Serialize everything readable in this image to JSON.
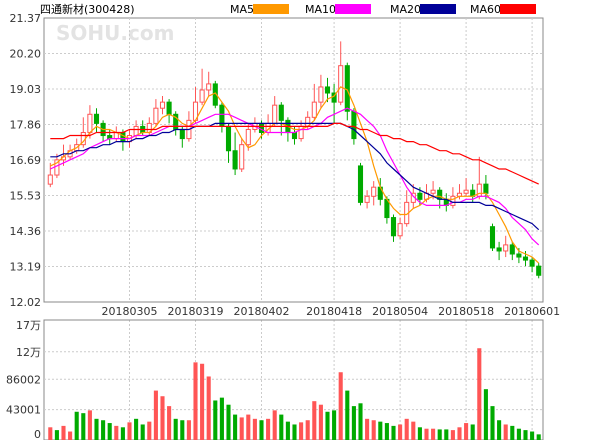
{
  "title": "四通新材(300428)",
  "watermark": "SOHU.com",
  "legend": [
    {
      "name": "MA5",
      "color": "#ff9900"
    },
    {
      "name": "MA10",
      "color": "#ff00ff"
    },
    {
      "name": "MA20",
      "color": "#000099"
    },
    {
      "name": "MA60",
      "color": "#ff0000"
    }
  ],
  "colors": {
    "up": "#ff5555",
    "down": "#00aa00",
    "grid": "#cccccc",
    "frame": "#888888",
    "text": "#333333"
  },
  "chart_data": [
    {
      "type": "candlestick",
      "ylim": [
        12.02,
        21.37
      ],
      "yticks": [
        "21.37",
        "20.20",
        "19.03",
        "17.86",
        "16.69",
        "15.53",
        "14.36",
        "13.19",
        "12.02"
      ],
      "xticks": [
        {
          "label": "20180305",
          "index": 12
        },
        {
          "label": "20180319",
          "index": 22
        },
        {
          "label": "20180402",
          "index": 32
        },
        {
          "label": "20180418",
          "index": 43
        },
        {
          "label": "20180504",
          "index": 53
        },
        {
          "label": "20180518",
          "index": 63
        },
        {
          "label": "20180601",
          "index": 73
        }
      ],
      "candles": [
        [
          15.9,
          16.2,
          16.6,
          15.8
        ],
        [
          16.2,
          16.7,
          16.9,
          16.1
        ],
        [
          16.7,
          16.8,
          17.2,
          16.5
        ],
        [
          16.8,
          17.0,
          17.2,
          16.7
        ],
        [
          17.0,
          17.2,
          17.4,
          16.9
        ],
        [
          17.2,
          17.6,
          18.1,
          17.1
        ],
        [
          17.6,
          18.2,
          18.5,
          17.4
        ],
        [
          18.2,
          17.9,
          18.4,
          17.6
        ],
        [
          17.9,
          17.5,
          18.0,
          17.3
        ],
        [
          17.5,
          17.4,
          17.7,
          17.2
        ],
        [
          17.4,
          17.6,
          17.8,
          17.3
        ],
        [
          17.6,
          17.3,
          17.7,
          17.0
        ],
        [
          17.3,
          17.5,
          17.7,
          17.1
        ],
        [
          17.5,
          17.8,
          18.0,
          17.4
        ],
        [
          17.8,
          17.6,
          18.0,
          17.5
        ],
        [
          17.6,
          17.9,
          18.1,
          17.5
        ],
        [
          17.9,
          18.4,
          18.7,
          17.8
        ],
        [
          18.4,
          18.6,
          18.8,
          18.2
        ],
        [
          18.6,
          18.2,
          18.7,
          17.9
        ],
        [
          18.2,
          17.7,
          18.3,
          17.5
        ],
        [
          17.7,
          17.4,
          17.8,
          17.1
        ],
        [
          17.4,
          18.0,
          18.3,
          17.3
        ],
        [
          18.0,
          18.6,
          19.1,
          17.9
        ],
        [
          18.6,
          19.0,
          19.7,
          18.5
        ],
        [
          19.0,
          19.2,
          19.6,
          18.8
        ],
        [
          19.2,
          18.5,
          19.3,
          18.4
        ],
        [
          18.5,
          17.8,
          18.6,
          17.6
        ],
        [
          17.8,
          17.0,
          17.9,
          16.6
        ],
        [
          17.0,
          16.4,
          17.6,
          16.2
        ],
        [
          16.4,
          17.2,
          17.4,
          16.3
        ],
        [
          17.2,
          17.7,
          17.9,
          17.0
        ],
        [
          17.7,
          17.9,
          18.1,
          17.6
        ],
        [
          17.9,
          17.6,
          18.0,
          17.4
        ],
        [
          17.6,
          17.9,
          18.2,
          17.5
        ],
        [
          17.9,
          18.5,
          18.8,
          17.8
        ],
        [
          18.5,
          18.0,
          18.6,
          17.5
        ],
        [
          18.0,
          17.6,
          18.1,
          17.3
        ],
        [
          17.6,
          17.4,
          17.8,
          17.2
        ],
        [
          17.4,
          17.8,
          18.0,
          17.3
        ],
        [
          17.8,
          18.1,
          18.3,
          17.7
        ],
        [
          18.1,
          18.6,
          19.2,
          18.0
        ],
        [
          18.6,
          19.1,
          19.5,
          18.4
        ],
        [
          19.1,
          18.9,
          19.4,
          18.6
        ],
        [
          18.9,
          18.6,
          19.2,
          17.9
        ],
        [
          18.6,
          19.8,
          20.6,
          18.5
        ],
        [
          19.8,
          18.3,
          19.9,
          18.0
        ],
        [
          18.3,
          17.4,
          18.4,
          17.2
        ],
        [
          16.5,
          15.3,
          16.6,
          15.2
        ],
        [
          15.3,
          15.5,
          15.7,
          15.1
        ],
        [
          15.5,
          15.8,
          16.0,
          15.2
        ],
        [
          15.8,
          15.4,
          16.1,
          15.2
        ],
        [
          15.4,
          14.8,
          15.5,
          14.6
        ],
        [
          14.8,
          14.2,
          14.9,
          14.0
        ],
        [
          14.2,
          14.6,
          14.8,
          14.1
        ],
        [
          14.6,
          15.3,
          15.7,
          14.5
        ],
        [
          15.3,
          15.6,
          15.9,
          15.1
        ],
        [
          15.6,
          15.4,
          15.8,
          15.2
        ],
        [
          15.4,
          15.6,
          15.9,
          15.3
        ],
        [
          15.6,
          15.7,
          16.0,
          15.4
        ],
        [
          15.7,
          15.4,
          15.8,
          15.1
        ],
        [
          15.4,
          15.2,
          15.6,
          15.0
        ],
        [
          15.2,
          15.5,
          15.8,
          15.1
        ],
        [
          15.5,
          15.6,
          15.9,
          15.4
        ],
        [
          15.6,
          15.7,
          16.1,
          15.5
        ],
        [
          15.7,
          15.5,
          15.9,
          15.3
        ],
        [
          15.5,
          15.9,
          16.8,
          15.4
        ],
        [
          15.9,
          15.6,
          16.2,
          15.4
        ],
        [
          14.5,
          13.8,
          14.6,
          13.7
        ],
        [
          13.8,
          13.7,
          14.0,
          13.4
        ],
        [
          13.7,
          13.9,
          14.2,
          13.5
        ],
        [
          13.9,
          13.6,
          14.0,
          13.4
        ],
        [
          13.6,
          13.5,
          13.8,
          13.3
        ],
        [
          13.5,
          13.4,
          13.7,
          13.2
        ],
        [
          13.4,
          13.2,
          13.5,
          13.0
        ],
        [
          13.2,
          12.9,
          13.3,
          12.8
        ]
      ],
      "ma": {
        "MA5": [
          16.5,
          16.6,
          16.8,
          17.0,
          17.1,
          17.3,
          17.6,
          17.8,
          17.7,
          17.7,
          17.6,
          17.5,
          17.4,
          17.5,
          17.6,
          17.6,
          17.8,
          18.1,
          18.2,
          18.1,
          17.9,
          17.8,
          18.0,
          18.4,
          18.8,
          18.9,
          18.6,
          18.3,
          17.8,
          17.4,
          17.1,
          17.2,
          17.5,
          17.7,
          17.9,
          17.9,
          17.8,
          17.7,
          17.7,
          17.8,
          18.0,
          18.4,
          18.7,
          18.8,
          19.1,
          19.0,
          18.5,
          17.9,
          17.3,
          16.5,
          15.8,
          15.4,
          15.1,
          14.9,
          14.9,
          15.1,
          15.2,
          15.4,
          15.5,
          15.5,
          15.4,
          15.4,
          15.5,
          15.5,
          15.5,
          15.6,
          15.6,
          15.3,
          14.9,
          14.5,
          14.0,
          13.7,
          13.6,
          13.5,
          13.3
        ],
        "MA10": [
          16.4,
          16.5,
          16.6,
          16.7,
          16.8,
          16.9,
          17.1,
          17.2,
          17.3,
          17.4,
          17.4,
          17.4,
          17.4,
          17.5,
          17.5,
          17.5,
          17.6,
          17.7,
          17.8,
          17.8,
          17.8,
          17.8,
          17.9,
          18.0,
          18.1,
          18.2,
          18.2,
          18.2,
          18.1,
          18.0,
          17.9,
          17.8,
          17.7,
          17.6,
          17.6,
          17.6,
          17.6,
          17.6,
          17.7,
          17.7,
          17.8,
          17.9,
          18.1,
          18.2,
          18.3,
          18.4,
          18.3,
          18.2,
          18.0,
          17.8,
          17.5,
          17.0,
          16.6,
          16.2,
          15.8,
          15.5,
          15.3,
          15.2,
          15.2,
          15.2,
          15.2,
          15.3,
          15.3,
          15.4,
          15.4,
          15.5,
          15.5,
          15.4,
          15.3,
          15.1,
          14.8,
          14.6,
          14.4,
          14.1,
          13.9
        ],
        "MA20": [
          16.8,
          16.8,
          16.9,
          16.9,
          17.0,
          17.0,
          17.1,
          17.1,
          17.2,
          17.2,
          17.3,
          17.3,
          17.3,
          17.4,
          17.4,
          17.5,
          17.5,
          17.6,
          17.6,
          17.7,
          17.7,
          17.7,
          17.8,
          17.8,
          17.8,
          17.9,
          17.9,
          17.9,
          17.9,
          17.9,
          17.9,
          17.9,
          17.9,
          17.9,
          17.9,
          17.9,
          17.9,
          17.9,
          17.9,
          17.9,
          17.9,
          17.9,
          17.9,
          17.9,
          17.9,
          17.8,
          17.7,
          17.5,
          17.3,
          17.1,
          16.9,
          16.6,
          16.4,
          16.2,
          16.0,
          15.8,
          15.7,
          15.6,
          15.5,
          15.4,
          15.4,
          15.3,
          15.3,
          15.3,
          15.3,
          15.3,
          15.2,
          15.2,
          15.1,
          15.0,
          14.9,
          14.8,
          14.7,
          14.6,
          14.4
        ],
        "MA60": [
          17.4,
          17.4,
          17.4,
          17.5,
          17.5,
          17.5,
          17.5,
          17.6,
          17.6,
          17.6,
          17.6,
          17.6,
          17.7,
          17.7,
          17.7,
          17.7,
          17.7,
          17.8,
          17.8,
          17.8,
          17.8,
          17.8,
          17.8,
          17.8,
          17.8,
          17.8,
          17.8,
          17.8,
          17.8,
          17.8,
          17.8,
          17.8,
          17.8,
          17.8,
          17.8,
          17.8,
          17.8,
          17.8,
          17.8,
          17.8,
          17.8,
          17.8,
          17.8,
          17.9,
          17.9,
          17.8,
          17.8,
          17.7,
          17.7,
          17.6,
          17.5,
          17.5,
          17.4,
          17.4,
          17.3,
          17.3,
          17.2,
          17.2,
          17.1,
          17.0,
          17.0,
          16.9,
          16.9,
          16.8,
          16.7,
          16.7,
          16.6,
          16.5,
          16.4,
          16.4,
          16.3,
          16.2,
          16.1,
          16.0,
          15.9
        ]
      }
    },
    {
      "type": "bar",
      "ylim": [
        0,
        170000
      ],
      "yticks": [
        {
          "label": "17万",
          "value": 170000
        },
        {
          "label": "12万",
          "value": 125000
        },
        {
          "label": "86002",
          "value": 86002
        },
        {
          "label": "43001",
          "value": 43001
        },
        {
          "label": "0",
          "value": 0
        }
      ],
      "values": [
        [
          18000,
          1
        ],
        [
          14000,
          0
        ],
        [
          20000,
          1
        ],
        [
          12000,
          1
        ],
        [
          40000,
          0
        ],
        [
          38000,
          0
        ],
        [
          42000,
          1
        ],
        [
          30000,
          0
        ],
        [
          28000,
          0
        ],
        [
          24000,
          0
        ],
        [
          20000,
          1
        ],
        [
          18000,
          0
        ],
        [
          25000,
          1
        ],
        [
          30000,
          0
        ],
        [
          22000,
          0
        ],
        [
          26000,
          1
        ],
        [
          70000,
          1
        ],
        [
          62000,
          1
        ],
        [
          48000,
          1
        ],
        [
          30000,
          0
        ],
        [
          28000,
          0
        ],
        [
          28000,
          1
        ],
        [
          110000,
          1
        ],
        [
          108000,
          1
        ],
        [
          90000,
          1
        ],
        [
          56000,
          0
        ],
        [
          60000,
          0
        ],
        [
          50000,
          0
        ],
        [
          36000,
          0
        ],
        [
          32000,
          1
        ],
        [
          36000,
          1
        ],
        [
          30000,
          1
        ],
        [
          28000,
          0
        ],
        [
          30000,
          1
        ],
        [
          42000,
          1
        ],
        [
          36000,
          0
        ],
        [
          26000,
          0
        ],
        [
          22000,
          0
        ],
        [
          25000,
          1
        ],
        [
          28000,
          1
        ],
        [
          55000,
          1
        ],
        [
          50000,
          1
        ],
        [
          40000,
          0
        ],
        [
          42000,
          0
        ],
        [
          96000,
          1
        ],
        [
          70000,
          0
        ],
        [
          48000,
          0
        ],
        [
          52000,
          0
        ],
        [
          30000,
          1
        ],
        [
          28000,
          1
        ],
        [
          26000,
          0
        ],
        [
          24000,
          0
        ],
        [
          20000,
          0
        ],
        [
          22000,
          1
        ],
        [
          30000,
          1
        ],
        [
          26000,
          1
        ],
        [
          18000,
          0
        ],
        [
          16000,
          1
        ],
        [
          16000,
          1
        ],
        [
          15000,
          0
        ],
        [
          15000,
          0
        ],
        [
          14000,
          1
        ],
        [
          18000,
          1
        ],
        [
          24000,
          1
        ],
        [
          22000,
          0
        ],
        [
          130000,
          1
        ],
        [
          72000,
          0
        ],
        [
          48000,
          0
        ],
        [
          28000,
          0
        ],
        [
          22000,
          1
        ],
        [
          20000,
          0
        ],
        [
          16000,
          0
        ],
        [
          14000,
          0
        ],
        [
          12000,
          0
        ],
        [
          8000,
          0
        ]
      ]
    }
  ]
}
